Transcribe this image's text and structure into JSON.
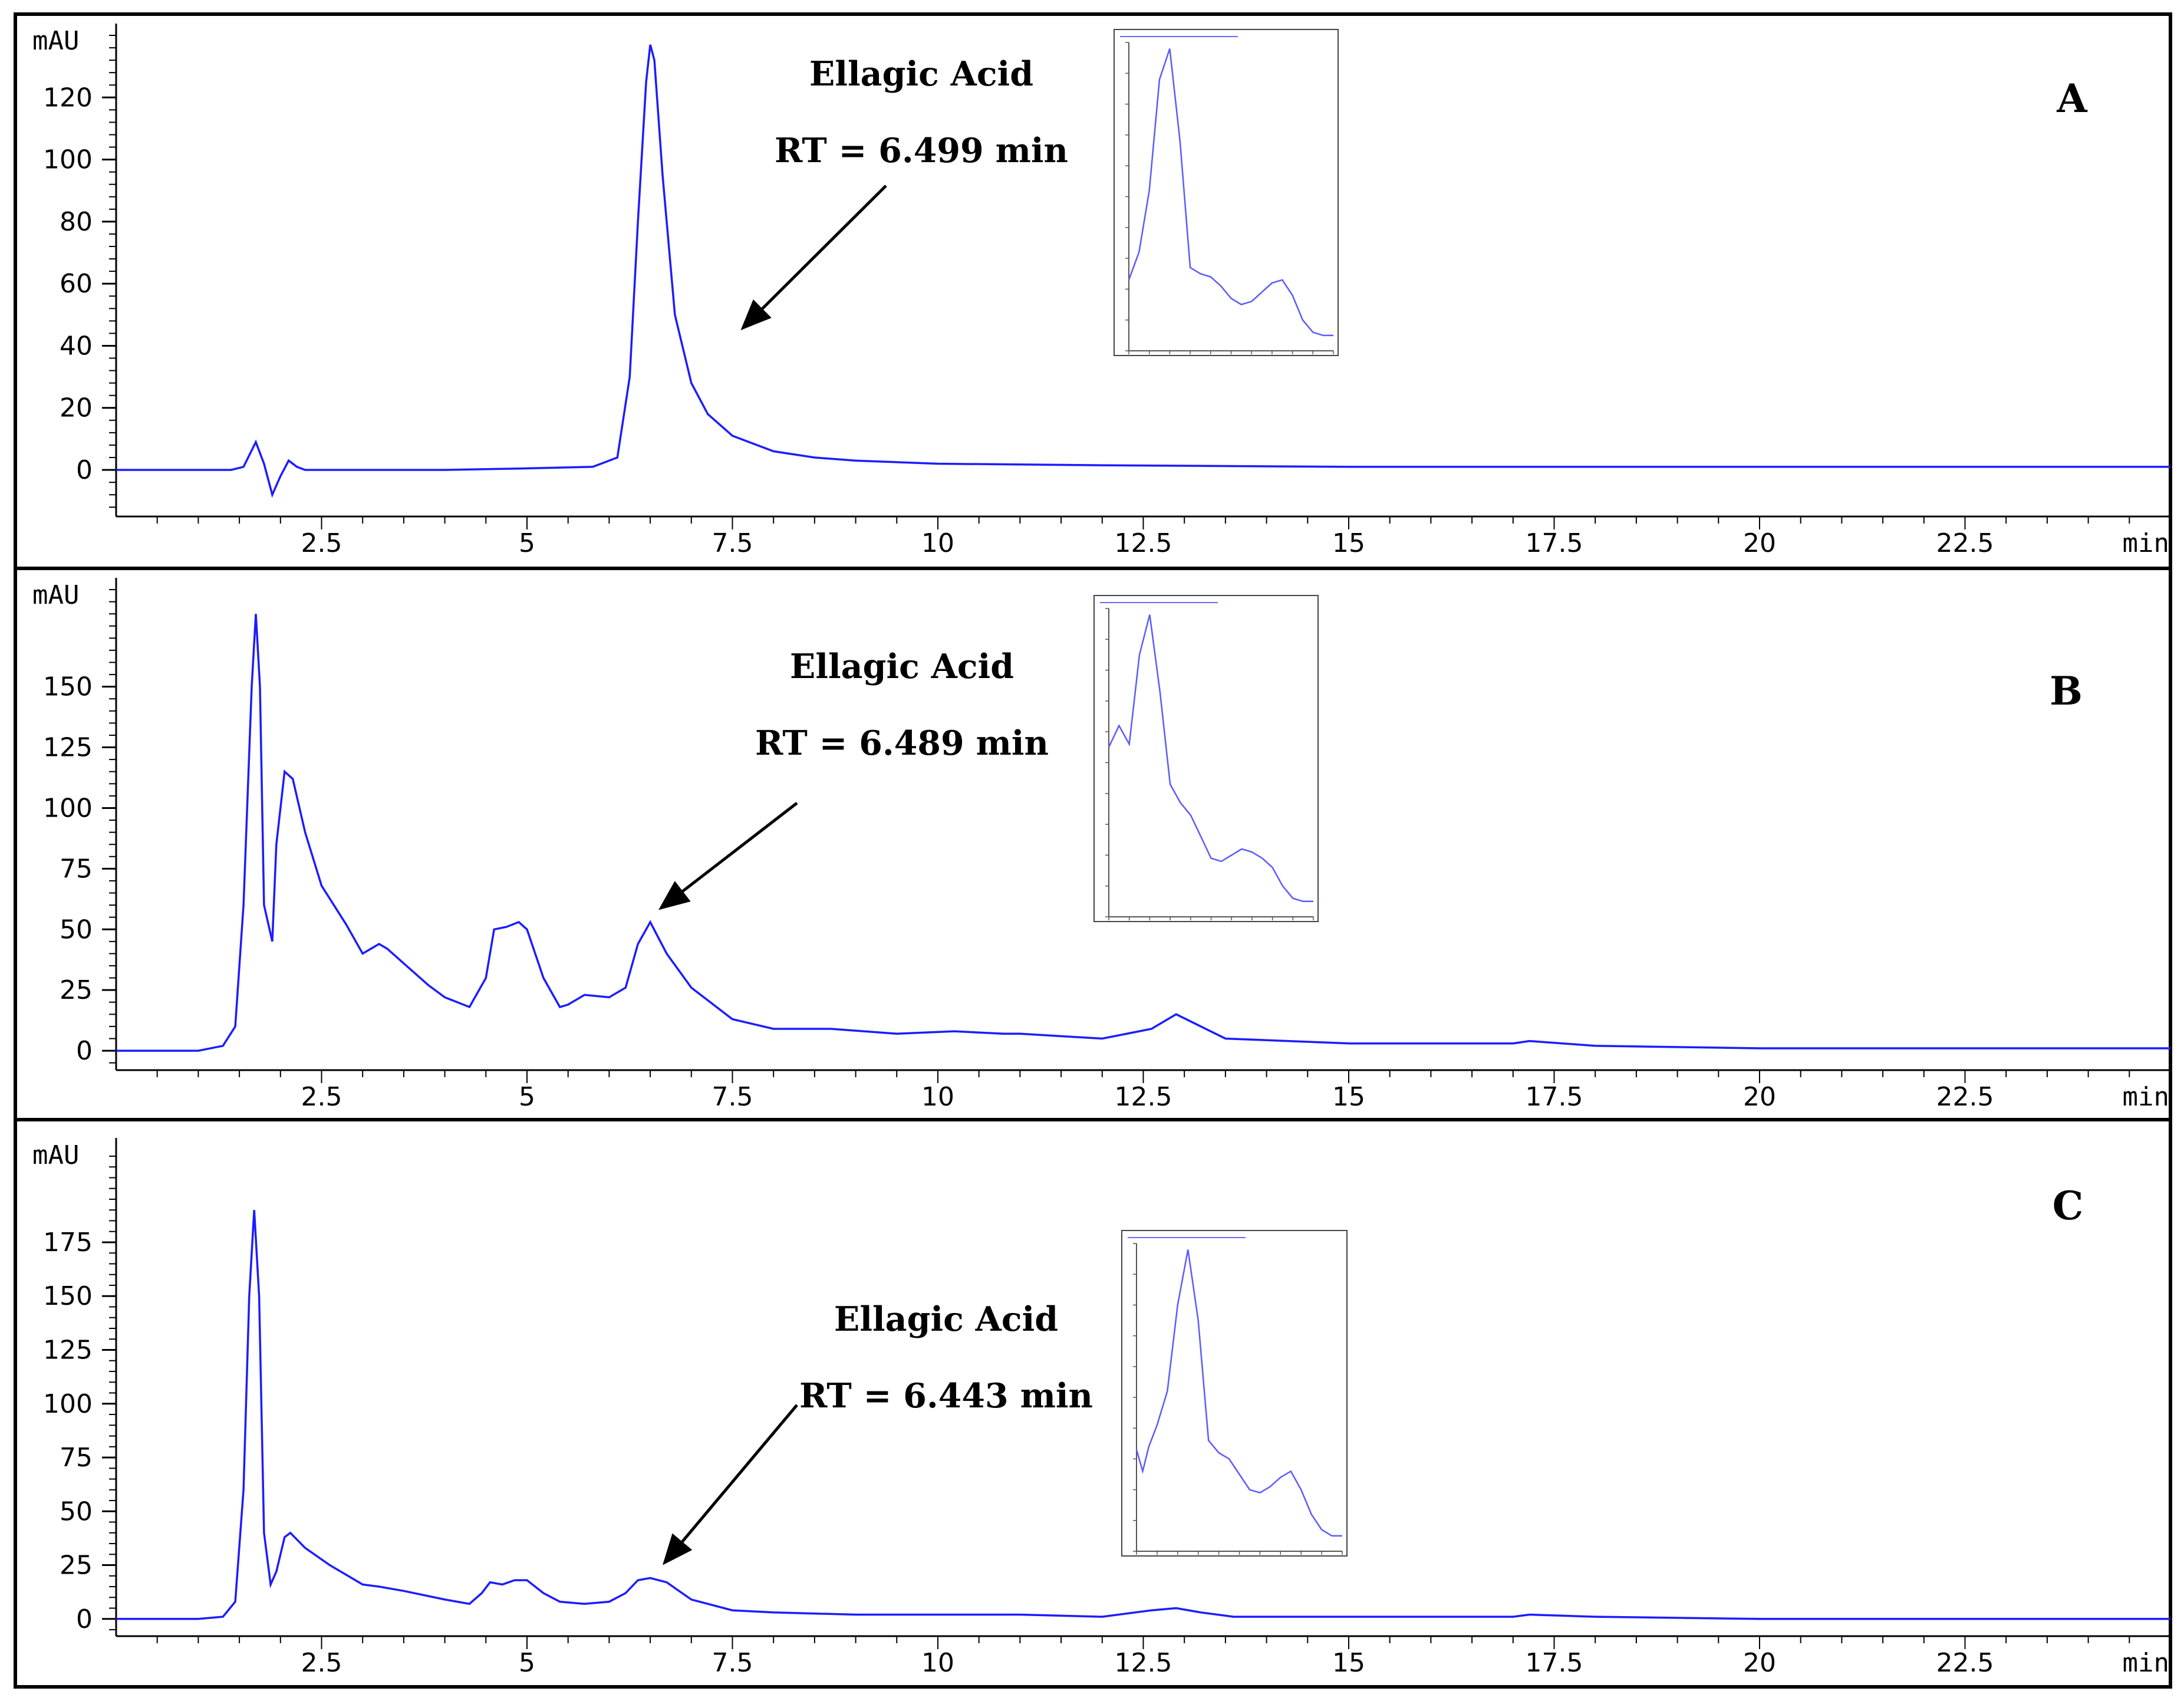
{
  "chart_data": [
    {
      "type": "line",
      "panel_label": "A",
      "ylabel": "mAU",
      "xlabel": "min",
      "xlim": [
        0,
        25
      ],
      "ylim": [
        -15,
        140
      ],
      "x_ticks": [
        2.5,
        5,
        7.5,
        10,
        12.5,
        15,
        17.5,
        20,
        22.5
      ],
      "x_tick_labels": [
        "2.5",
        "5",
        "7.5",
        "10",
        "12.5",
        "15",
        "17.5",
        "20",
        "22.5"
      ],
      "y_ticks": [
        0,
        20,
        40,
        60,
        80,
        100,
        120
      ],
      "y_tick_labels": [
        "0",
        "20",
        "40",
        "60",
        "80",
        "100",
        "120"
      ],
      "annotation": {
        "compound": "Ellagic Acid",
        "retention": "RT = 6.499 min",
        "arrow_target": [
          7.6,
          45
        ]
      },
      "series": [
        {
          "name": "chromatogram",
          "color": "#1c1cff",
          "x": [
            0,
            1,
            1.4,
            1.55,
            1.7,
            1.8,
            1.9,
            2.0,
            2.1,
            2.2,
            2.3,
            3,
            4,
            5,
            5.8,
            6.1,
            6.25,
            6.35,
            6.45,
            6.5,
            6.55,
            6.65,
            6.8,
            7.0,
            7.2,
            7.5,
            8,
            8.5,
            9,
            10,
            12,
            15,
            20,
            25
          ],
          "y": [
            0,
            0,
            0,
            1,
            9,
            2,
            -8,
            -2,
            3,
            1,
            0,
            0,
            0,
            0.5,
            1,
            4,
            30,
            80,
            125,
            137,
            132,
            95,
            50,
            28,
            18,
            11,
            6,
            4,
            3,
            2,
            1.5,
            1,
            1,
            1
          ]
        }
      ],
      "inset": {
        "type": "line",
        "description": "UV spectrum of peak",
        "x": [
          0,
          5,
          10,
          15,
          20,
          25,
          30,
          35,
          40,
          45,
          50,
          55,
          60,
          65,
          70,
          75,
          80,
          85,
          90,
          95,
          100
        ],
        "y": [
          23,
          32,
          52,
          88,
          98,
          68,
          27,
          25,
          24,
          21,
          17,
          15,
          16,
          19,
          22,
          23,
          18,
          10,
          6,
          5,
          5
        ]
      }
    },
    {
      "type": "line",
      "panel_label": "B",
      "ylabel": "mAU",
      "xlabel": "min",
      "xlim": [
        0,
        25
      ],
      "ylim": [
        -8,
        190
      ],
      "x_ticks": [
        2.5,
        5,
        7.5,
        10,
        12.5,
        15,
        17.5,
        20,
        22.5
      ],
      "x_tick_labels": [
        "2.5",
        "5",
        "7.5",
        "10",
        "12.5",
        "15",
        "17.5",
        "20",
        "22.5"
      ],
      "y_ticks": [
        0,
        25,
        50,
        75,
        100,
        125,
        150
      ],
      "y_tick_labels": [
        "0",
        "25",
        "50",
        "75",
        "100",
        "125",
        "150"
      ],
      "annotation": {
        "compound": "Ellagic Acid",
        "retention": "RT = 6.489 min",
        "arrow_target": [
          6.6,
          58
        ]
      },
      "series": [
        {
          "name": "chromatogram",
          "color": "#1c1cff",
          "x": [
            0,
            1.0,
            1.3,
            1.45,
            1.55,
            1.65,
            1.7,
            1.75,
            1.8,
            1.9,
            1.95,
            2.05,
            2.15,
            2.3,
            2.5,
            2.8,
            3.0,
            3.2,
            3.3,
            3.5,
            3.8,
            4.0,
            4.3,
            4.5,
            4.6,
            4.75,
            4.9,
            5.0,
            5.2,
            5.4,
            5.5,
            5.7,
            6.0,
            6.2,
            6.35,
            6.5,
            6.7,
            7.0,
            7.5,
            8,
            8.7,
            9.5,
            10.2,
            10.8,
            11,
            12,
            12.6,
            12.9,
            13.2,
            13.5,
            15,
            17,
            17.2,
            18,
            20,
            25
          ],
          "y": [
            0,
            0,
            2,
            10,
            60,
            150,
            180,
            150,
            60,
            45,
            85,
            115,
            112,
            90,
            68,
            52,
            40,
            44,
            42,
            36,
            27,
            22,
            18,
            30,
            50,
            51,
            53,
            50,
            30,
            18,
            19,
            23,
            22,
            26,
            44,
            53,
            40,
            26,
            13,
            9,
            9,
            7,
            8,
            7,
            7,
            5,
            9,
            15,
            10,
            5,
            3,
            3,
            4,
            2,
            1,
            1
          ]
        }
      ],
      "inset": {
        "type": "line",
        "description": "UV spectrum of peak",
        "x": [
          0,
          5,
          10,
          15,
          20,
          25,
          30,
          35,
          40,
          45,
          50,
          55,
          60,
          65,
          70,
          75,
          80,
          85,
          90,
          95,
          100
        ],
        "y": [
          55,
          62,
          56,
          85,
          98,
          73,
          43,
          37,
          33,
          26,
          19,
          18,
          20,
          22,
          21,
          19,
          16,
          10,
          6,
          5,
          5
        ]
      }
    },
    {
      "type": "line",
      "panel_label": "C",
      "ylabel": "mAU",
      "xlabel": "min",
      "xlim": [
        0,
        25
      ],
      "ylim": [
        -8,
        218
      ],
      "x_ticks": [
        2.5,
        5,
        7.5,
        10,
        12.5,
        15,
        17.5,
        20,
        22.5
      ],
      "x_tick_labels": [
        "2.5",
        "5",
        "7.5",
        "10",
        "12.5",
        "15",
        "17.5",
        "20",
        "22.5"
      ],
      "y_ticks": [
        0,
        25,
        50,
        75,
        100,
        125,
        150,
        175
      ],
      "y_tick_labels": [
        "0",
        "25",
        "50",
        "75",
        "100",
        "125",
        "150",
        "175"
      ],
      "annotation": {
        "compound": "Ellagic Acid",
        "retention": "RT = 6.443 min",
        "arrow_target": [
          6.65,
          25
        ]
      },
      "series": [
        {
          "name": "chromatogram",
          "color": "#1c1cff",
          "x": [
            0,
            1.0,
            1.3,
            1.45,
            1.55,
            1.62,
            1.68,
            1.74,
            1.8,
            1.88,
            1.95,
            2.05,
            2.12,
            2.3,
            2.6,
            3.0,
            3.2,
            3.5,
            4.0,
            4.3,
            4.45,
            4.55,
            4.7,
            4.85,
            5.0,
            5.2,
            5.4,
            5.7,
            6.0,
            6.2,
            6.35,
            6.5,
            6.7,
            7.0,
            7.5,
            8,
            9,
            10,
            11,
            12,
            12.6,
            12.9,
            13.2,
            13.6,
            15,
            17,
            17.2,
            18,
            20,
            25
          ],
          "y": [
            0,
            0,
            1,
            8,
            60,
            150,
            190,
            150,
            40,
            16,
            22,
            38,
            40,
            33,
            25,
            16,
            15,
            13,
            9,
            7,
            12,
            17,
            16,
            18,
            18,
            12,
            8,
            7,
            8,
            12,
            18,
            19,
            17,
            9,
            4,
            3,
            2,
            2,
            2,
            1,
            4,
            5,
            3,
            1,
            1,
            1,
            2,
            1,
            0,
            0
          ]
        }
      ],
      "inset": {
        "type": "line",
        "description": "UV spectrum of peak",
        "x": [
          0,
          3,
          6,
          10,
          15,
          20,
          25,
          30,
          35,
          40,
          45,
          50,
          55,
          60,
          65,
          70,
          75,
          80,
          85,
          90,
          95,
          100
        ],
        "y": [
          33,
          26,
          34,
          41,
          52,
          80,
          98,
          75,
          36,
          32,
          30,
          25,
          20,
          19,
          21,
          24,
          26,
          20,
          12,
          7,
          5,
          5
        ]
      }
    }
  ]
}
